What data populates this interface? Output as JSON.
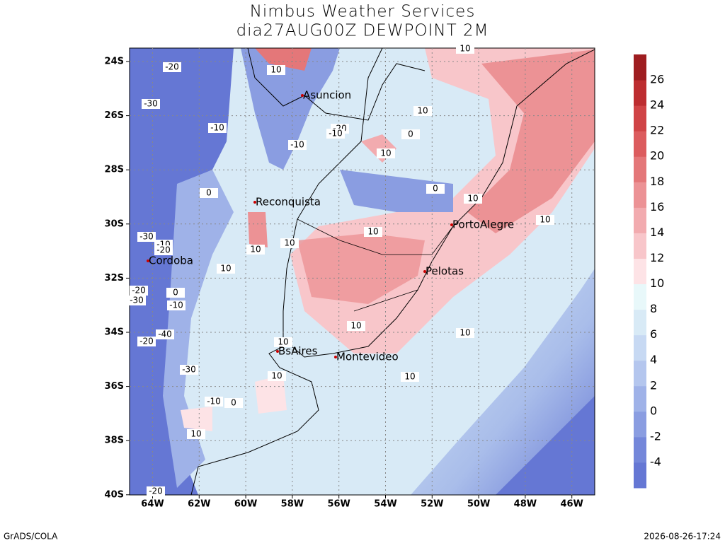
{
  "header": {
    "title": "Nimbus Weather Services",
    "subtitle": "dia27AUG00Z DEWPOINT 2M"
  },
  "axes": {
    "lat_labels": [
      "24S",
      "26S",
      "28S",
      "30S",
      "32S",
      "34S",
      "36S",
      "38S",
      "40S"
    ],
    "lon_labels": [
      "64W",
      "62W",
      "60W",
      "58W",
      "56W",
      "54W",
      "52W",
      "50W",
      "48W",
      "46W"
    ]
  },
  "cities": [
    "Asuncion",
    "Reconquista",
    "Cordoba",
    "PortoAlegre",
    "Pelotas",
    "BsAires",
    "Montevideo"
  ],
  "contour_labels": [
    "-20",
    "-30",
    "-10",
    "10",
    "10",
    "10",
    "-20",
    "-10",
    "0",
    "-10",
    "10",
    "0",
    "0",
    "10",
    "10",
    "10",
    "-30",
    "-10",
    "-20",
    "10",
    "10",
    "10",
    "-20",
    "-30",
    "0",
    "-10",
    "10",
    "10",
    "-40",
    "-20",
    "10",
    "-30",
    "10",
    "10",
    "-10",
    "0",
    "10",
    "-20"
  ],
  "colorbar": {
    "levels": [
      -4,
      -2,
      0,
      2,
      4,
      6,
      8,
      10,
      12,
      14,
      16,
      18,
      20,
      22,
      24,
      26
    ],
    "colors": [
      "#6577d4",
      "#7487da",
      "#8a9de1",
      "#9fb2e8",
      "#b4c6ee",
      "#c7d9f3",
      "#d8eaf6",
      "#e8f8fa",
      "#fde3e6",
      "#f8c6ca",
      "#f2abaf",
      "#ec9295",
      "#e47779",
      "#dc5c5e",
      "#d04446",
      "#bd2d30",
      "#9e1d20"
    ]
  },
  "footer": {
    "left": "GrADS/COLA",
    "right": "2026-08-26-17:24"
  }
}
